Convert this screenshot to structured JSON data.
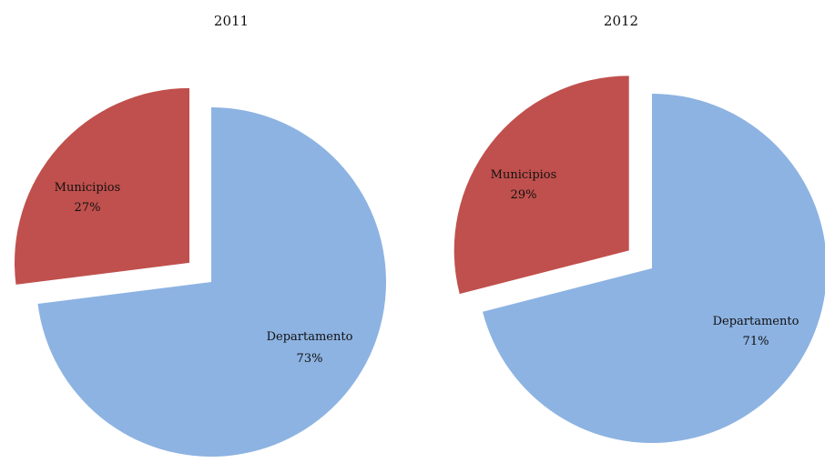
{
  "chart_data": [
    {
      "type": "pie",
      "title": "2011",
      "series": [
        {
          "label": "Departamento",
          "value": 73,
          "value_label": "73%",
          "color": "#8db3e2"
        },
        {
          "label": "Municipios",
          "value": 27,
          "value_label": "27%",
          "color": "#c0504d",
          "exploded": true
        }
      ]
    },
    {
      "type": "pie",
      "title": "2012",
      "series": [
        {
          "label": "Departamento",
          "value": 71,
          "value_label": "71%",
          "color": "#8db3e2"
        },
        {
          "label": "Municipios",
          "value": 29,
          "value_label": "29%",
          "color": "#c0504d",
          "exploded": true
        }
      ]
    }
  ]
}
